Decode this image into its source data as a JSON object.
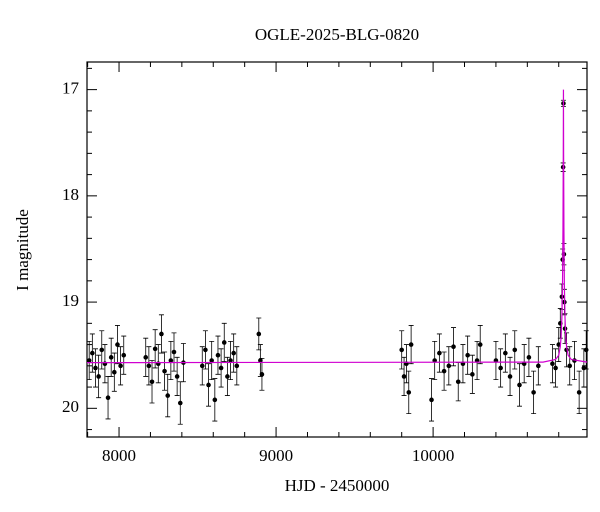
{
  "chart_data": {
    "type": "scatter",
    "title": "OGLE-2025-BLG-0820",
    "x_label": "HJD - 2450000",
    "y_label": "I magnitude",
    "xlim": [
      7796,
      10980
    ],
    "ylim": [
      20.27,
      16.74
    ],
    "xticks": [
      8000,
      9000,
      10000
    ],
    "yticks": [
      17,
      18,
      19,
      20
    ],
    "xminorticks": [
      7800,
      8200,
      8400,
      8600,
      8800,
      9200,
      9400,
      9600,
      9800,
      10200,
      10400,
      10600,
      10800
    ],
    "yminorticks": [
      16.8,
      17.2,
      17.4,
      17.6,
      17.8,
      18.2,
      18.4,
      18.6,
      18.8,
      19.2,
      19.4,
      19.6,
      19.8,
      20.2
    ],
    "series": [
      {
        "color": "#000000",
        "x": [
          7810,
          7830,
          7850,
          7870,
          7890,
          7910,
          7930,
          7950,
          7970,
          7990,
          8010,
          8030,
          8170,
          8190,
          8210,
          8230,
          8250,
          8270,
          8290,
          8310,
          8330,
          8350,
          8370,
          8390,
          8410,
          8530,
          8550,
          8570,
          8590,
          8610,
          8630,
          8650,
          8670,
          8690,
          8710,
          8730,
          8750,
          8890,
          8900,
          8910,
          9800,
          9815,
          9830,
          9845,
          9860,
          9990,
          10010,
          10040,
          10070,
          10100,
          10130,
          10160,
          10190,
          10220,
          10250,
          10280,
          10300,
          10400,
          10430,
          10460,
          10490,
          10520,
          10550,
          10580,
          10610,
          10640,
          10670,
          10760,
          10780,
          10800,
          10810,
          10820,
          10825,
          10828,
          10830,
          10833,
          10836,
          10840,
          10850,
          10870,
          10900,
          10930,
          10960,
          10975
        ],
        "values": [
          19.55,
          19.48,
          19.62,
          19.7,
          19.45,
          19.58,
          19.9,
          19.52,
          19.66,
          19.4,
          19.6,
          19.5,
          19.52,
          19.6,
          19.75,
          19.44,
          19.58,
          19.3,
          19.65,
          19.88,
          19.55,
          19.47,
          19.7,
          19.95,
          19.57,
          19.6,
          19.45,
          19.78,
          19.55,
          19.92,
          19.5,
          19.62,
          19.38,
          19.7,
          19.55,
          19.48,
          19.6,
          19.3,
          19.55,
          19.68,
          19.45,
          19.7,
          19.58,
          19.85,
          19.4,
          19.92,
          19.55,
          19.48,
          19.65,
          19.6,
          19.42,
          19.75,
          19.58,
          19.5,
          19.68,
          19.55,
          19.4,
          19.55,
          19.62,
          19.48,
          19.7,
          19.45,
          19.78,
          19.58,
          19.52,
          19.85,
          19.6,
          19.58,
          19.62,
          19.4,
          19.2,
          18.95,
          18.6,
          17.73,
          17.13,
          18.55,
          19.0,
          19.25,
          19.45,
          19.6,
          19.55,
          19.85,
          19.62,
          19.45
        ],
        "errors": [
          0.18,
          0.18,
          0.18,
          0.2,
          0.18,
          0.18,
          0.2,
          0.18,
          0.18,
          0.18,
          0.18,
          0.18,
          0.18,
          0.18,
          0.2,
          0.18,
          0.18,
          0.18,
          0.18,
          0.2,
          0.18,
          0.18,
          0.18,
          0.2,
          0.18,
          0.18,
          0.18,
          0.2,
          0.18,
          0.2,
          0.18,
          0.18,
          0.18,
          0.18,
          0.18,
          0.18,
          0.18,
          0.15,
          0.15,
          0.15,
          0.18,
          0.18,
          0.18,
          0.2,
          0.18,
          0.2,
          0.18,
          0.18,
          0.18,
          0.18,
          0.18,
          0.18,
          0.18,
          0.18,
          0.18,
          0.18,
          0.18,
          0.18,
          0.18,
          0.18,
          0.18,
          0.18,
          0.2,
          0.18,
          0.18,
          0.2,
          0.18,
          0.18,
          0.18,
          0.16,
          0.14,
          0.12,
          0.1,
          0.04,
          0.03,
          0.1,
          0.12,
          0.14,
          0.16,
          0.18,
          0.18,
          0.2,
          0.18,
          0.18
        ]
      },
      {
        "type": "line",
        "color": "#d000d0",
        "x": [
          7796,
          10700,
          10780,
          10800,
          10810,
          10815,
          10820,
          10824,
          10827,
          10829,
          10830,
          10831,
          10833,
          10836,
          10840,
          10845,
          10850,
          10860,
          10880,
          10980
        ],
        "values": [
          19.57,
          19.565,
          19.54,
          19.5,
          19.42,
          19.33,
          19.15,
          18.85,
          18.3,
          17.6,
          17.0,
          17.6,
          18.3,
          18.85,
          19.15,
          19.33,
          19.42,
          19.5,
          19.54,
          19.565
        ]
      }
    ]
  }
}
